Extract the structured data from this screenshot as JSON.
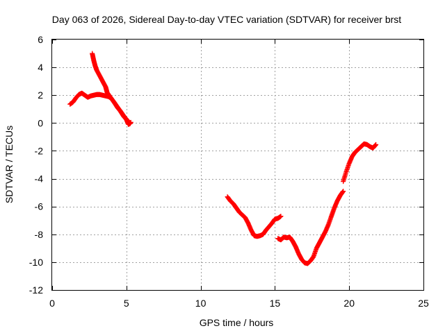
{
  "colors": {
    "series": "#ff0000",
    "axis": "#000000",
    "grid": "#a0a0a0",
    "background": "#ffffff"
  },
  "chart_data": {
    "type": "scatter",
    "title": "Day 063 of 2026, Sidereal Day-to-day VTEC variation (SDTVAR) for receiver brst",
    "xlabel": "GPS time / hours",
    "ylabel": "SDTVAR / TECUs",
    "xlim": [
      0,
      25
    ],
    "ylim": [
      -12,
      6
    ],
    "xticks": [
      "0",
      "5",
      "10",
      "15",
      "20",
      "25"
    ],
    "yticks": [
      "-12",
      "-10",
      "-8",
      "-6",
      "-4",
      "-2",
      "0",
      "2",
      "4",
      "6"
    ],
    "grid": true,
    "marker": "plus",
    "series": [
      {
        "points": [
          [
            1.2,
            1.35
          ],
          [
            1.4,
            1.5
          ],
          [
            1.6,
            1.8
          ],
          [
            1.8,
            2.05
          ],
          [
            2.0,
            2.15
          ],
          [
            2.2,
            2.0
          ],
          [
            2.4,
            1.85
          ],
          [
            2.6,
            1.95
          ],
          [
            2.8,
            2.0
          ],
          [
            3.0,
            2.05
          ],
          [
            3.2,
            2.05
          ],
          [
            3.4,
            2.0
          ],
          [
            3.6,
            1.95
          ],
          [
            3.8,
            1.9
          ],
          [
            4.0,
            1.75
          ],
          [
            4.2,
            1.45
          ],
          [
            4.4,
            1.1
          ],
          [
            4.6,
            0.85
          ],
          [
            4.8,
            0.5
          ],
          [
            5.0,
            0.25
          ],
          [
            5.1,
            0.0
          ],
          [
            5.15,
            -0.1
          ],
          [
            5.3,
            0.05
          ]
        ]
      },
      {
        "points": [
          [
            2.7,
            5.0
          ],
          [
            2.8,
            4.5
          ],
          [
            2.9,
            4.1
          ],
          [
            3.0,
            3.8
          ],
          [
            3.2,
            3.4
          ],
          [
            3.4,
            3.0
          ],
          [
            3.6,
            2.6
          ],
          [
            3.7,
            2.2
          ],
          [
            3.9,
            1.9
          ],
          [
            4.1,
            1.6
          ],
          [
            4.3,
            1.3
          ],
          [
            4.5,
            1.0
          ],
          [
            4.7,
            0.7
          ],
          [
            4.9,
            0.4
          ],
          [
            5.1,
            0.15
          ],
          [
            5.25,
            -0.05
          ]
        ]
      },
      {
        "points": [
          [
            11.8,
            -5.3
          ],
          [
            12.0,
            -5.6
          ],
          [
            12.2,
            -5.8
          ],
          [
            12.4,
            -6.1
          ],
          [
            12.6,
            -6.4
          ],
          [
            12.8,
            -6.6
          ],
          [
            13.0,
            -6.8
          ],
          [
            13.2,
            -7.2
          ],
          [
            13.4,
            -7.7
          ],
          [
            13.6,
            -8.1
          ],
          [
            13.8,
            -8.15
          ],
          [
            14.0,
            -8.1
          ],
          [
            14.2,
            -8.0
          ],
          [
            14.4,
            -7.7
          ],
          [
            14.6,
            -7.45
          ],
          [
            14.8,
            -7.2
          ],
          [
            15.0,
            -6.9
          ],
          [
            15.2,
            -6.85
          ],
          [
            15.4,
            -6.7
          ]
        ]
      },
      {
        "points": [
          [
            15.2,
            -8.3
          ],
          [
            15.4,
            -8.4
          ],
          [
            15.6,
            -8.2
          ],
          [
            15.8,
            -8.25
          ],
          [
            16.0,
            -8.2
          ],
          [
            16.2,
            -8.5
          ],
          [
            16.4,
            -8.9
          ],
          [
            16.6,
            -9.4
          ],
          [
            16.8,
            -9.8
          ],
          [
            17.0,
            -10.05
          ],
          [
            17.2,
            -10.1
          ],
          [
            17.4,
            -9.9
          ],
          [
            17.6,
            -9.6
          ],
          [
            17.8,
            -9.0
          ],
          [
            18.0,
            -8.6
          ],
          [
            18.2,
            -8.2
          ],
          [
            18.4,
            -7.8
          ],
          [
            18.6,
            -7.3
          ],
          [
            18.8,
            -6.7
          ],
          [
            19.0,
            -6.1
          ],
          [
            19.2,
            -5.6
          ],
          [
            19.4,
            -5.2
          ],
          [
            19.6,
            -4.9
          ]
        ]
      },
      {
        "points": [
          [
            19.6,
            -4.2
          ],
          [
            19.8,
            -3.5
          ],
          [
            20.0,
            -2.9
          ],
          [
            20.2,
            -2.4
          ],
          [
            20.4,
            -2.1
          ],
          [
            20.6,
            -1.9
          ],
          [
            20.8,
            -1.7
          ],
          [
            21.0,
            -1.5
          ],
          [
            21.2,
            -1.55
          ],
          [
            21.4,
            -1.7
          ],
          [
            21.6,
            -1.8
          ],
          [
            21.8,
            -1.55
          ]
        ]
      }
    ]
  }
}
